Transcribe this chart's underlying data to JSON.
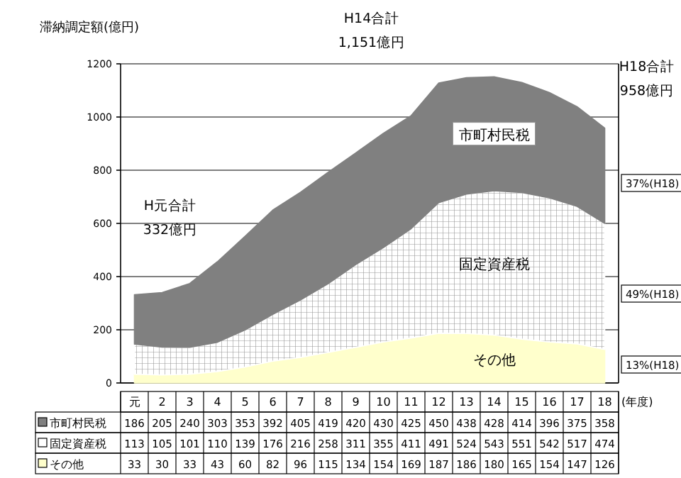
{
  "chart_data": {
    "type": "area",
    "stacked": true,
    "ylabel": "滞納調定額(億円)",
    "xlabel": "(年度)",
    "categories": [
      "元",
      "2",
      "3",
      "4",
      "5",
      "6",
      "7",
      "8",
      "9",
      "10",
      "11",
      "12",
      "13",
      "14",
      "15",
      "16",
      "17",
      "18"
    ],
    "series": [
      {
        "name": "その他",
        "color": "#ffffcc",
        "values": [
          33,
          30,
          33,
          43,
          60,
          82,
          96,
          115,
          134,
          154,
          169,
          187,
          186,
          180,
          165,
          154,
          147,
          126
        ]
      },
      {
        "name": "固定資産税",
        "color": "#ffffff",
        "values": [
          113,
          105,
          101,
          110,
          139,
          176,
          216,
          258,
          311,
          355,
          411,
          491,
          524,
          543,
          551,
          542,
          517,
          474
        ]
      },
      {
        "name": "市町村民税",
        "color": "#808080",
        "values": [
          186,
          205,
          240,
          303,
          353,
          392,
          405,
          419,
          420,
          430,
          425,
          450,
          438,
          428,
          414,
          396,
          375,
          358
        ]
      }
    ],
    "ylim": [
      0,
      1200
    ],
    "yticks": [
      0,
      200,
      400,
      600,
      800,
      1000,
      1200
    ],
    "grid": "y",
    "legend": "bottom",
    "data_labels": true,
    "annotations": [
      "H元合計 332億円",
      "H14合計 1,151億円",
      "H18合計 958億円",
      "37%(H18)",
      "49%(H18)",
      "13%(H18)"
    ]
  }
}
